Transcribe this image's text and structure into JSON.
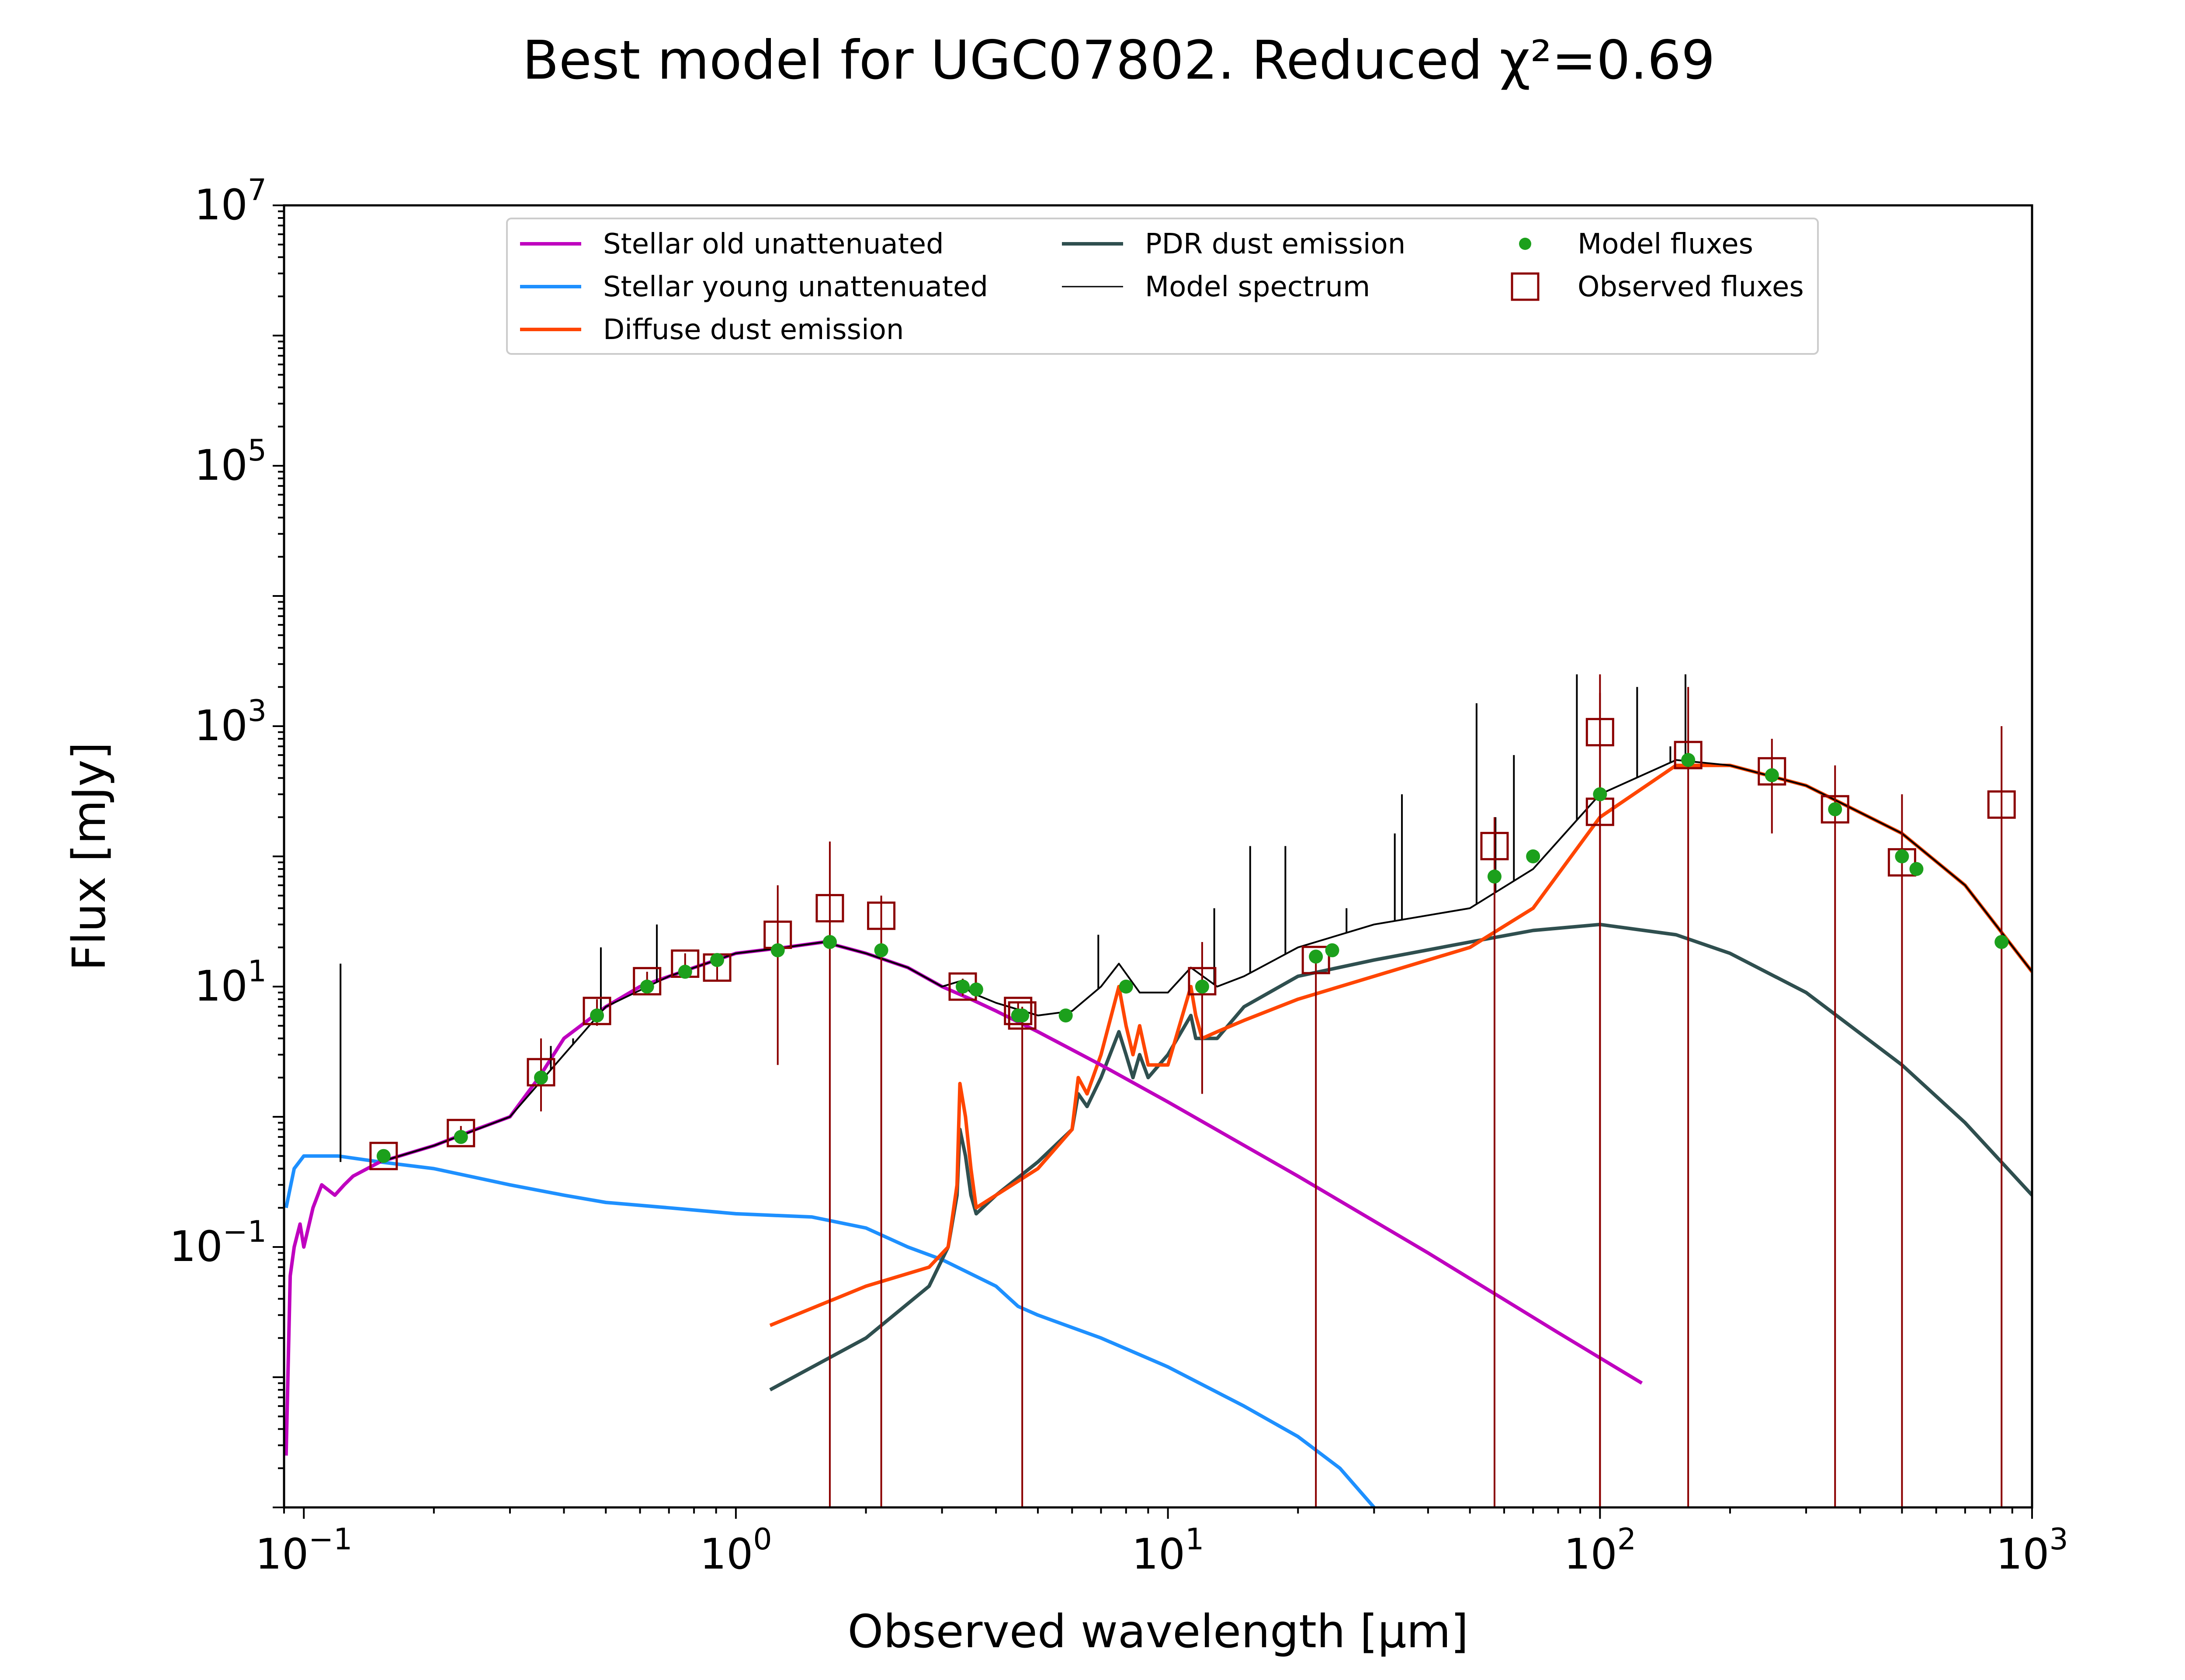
{
  "chart_data": {
    "type": "line",
    "title": "Best model for UGC07802. Reduced χ²=0.69",
    "xlabel": "Observed wavelength [μm]",
    "ylabel": "Flux [mJy]",
    "x_scale": "log",
    "y_scale": "log",
    "xlim": [
      0.09,
      1000
    ],
    "ylim": [
      0.001,
      10000000
    ],
    "x_ticks": [
      {
        "value": 0.1,
        "base": "10",
        "exp": "−1"
      },
      {
        "value": 1,
        "base": "10",
        "exp": "0"
      },
      {
        "value": 10,
        "base": "10",
        "exp": "1"
      },
      {
        "value": 100,
        "base": "10",
        "exp": "2"
      },
      {
        "value": 1000,
        "base": "10",
        "exp": "3"
      }
    ],
    "y_ticks": [
      {
        "value": 0.1,
        "base": "10",
        "exp": "−1"
      },
      {
        "value": 10,
        "base": "10",
        "exp": "1"
      },
      {
        "value": 1000,
        "base": "10",
        "exp": "3"
      },
      {
        "value": 100000,
        "base": "10",
        "exp": "5"
      },
      {
        "value": 10000000,
        "base": "10",
        "exp": "7"
      }
    ],
    "grid": false,
    "legend_position": "top-center",
    "series": [
      {
        "name": "Stellar old unattenuated",
        "color": "#bf00bf",
        "x": [
          0.091,
          0.093,
          0.095,
          0.098,
          0.1,
          0.105,
          0.11,
          0.118,
          0.124,
          0.13,
          0.15,
          0.2,
          0.25,
          0.3,
          0.35,
          0.4,
          0.5,
          0.6,
          0.8,
          1.0,
          1.3,
          1.6,
          2.0,
          2.5,
          3.0,
          3.5,
          4.0,
          5.0,
          7.0,
          10,
          20,
          40,
          80,
          125
        ],
        "y": [
          0.0025,
          0.06,
          0.1,
          0.15,
          0.1,
          0.2,
          0.3,
          0.25,
          0.3,
          0.35,
          0.45,
          0.6,
          0.8,
          1.0,
          2.0,
          4.0,
          7.0,
          10,
          14,
          18,
          20,
          22,
          18,
          14,
          10,
          8,
          6.5,
          4.5,
          2.5,
          1.3,
          0.35,
          0.09,
          0.022,
          0.009
        ]
      },
      {
        "name": "Stellar young unattenuated",
        "color": "#1e90ff",
        "x": [
          0.091,
          0.095,
          0.1,
          0.12,
          0.15,
          0.2,
          0.3,
          0.4,
          0.5,
          0.7,
          1.0,
          1.5,
          2.0,
          2.5,
          3.0,
          4.0,
          4.5,
          5.0,
          7.0,
          10,
          15,
          20,
          25,
          30
        ],
        "y": [
          0.2,
          0.4,
          0.5,
          0.5,
          0.45,
          0.4,
          0.3,
          0.25,
          0.22,
          0.2,
          0.18,
          0.17,
          0.14,
          0.1,
          0.08,
          0.05,
          0.035,
          0.03,
          0.02,
          0.012,
          0.006,
          0.0035,
          0.002,
          0.001
        ]
      },
      {
        "name": "Diffuse dust emission",
        "color": "#ff4500",
        "x": [
          1.2,
          2.0,
          2.8,
          3.1,
          3.25,
          3.3,
          3.4,
          3.5,
          3.6,
          4.0,
          5.0,
          6.0,
          6.2,
          6.5,
          7.0,
          7.7,
          8.0,
          8.3,
          8.6,
          9.0,
          10,
          11.3,
          11.6,
          12,
          13,
          15,
          20,
          30,
          50,
          70,
          100,
          150,
          200,
          300,
          500,
          700,
          1000
        ],
        "y": [
          0.025,
          0.05,
          0.07,
          0.1,
          0.3,
          1.8,
          1.0,
          0.4,
          0.2,
          0.25,
          0.4,
          0.8,
          2.0,
          1.5,
          3.0,
          10,
          5.0,
          3.0,
          5.0,
          2.5,
          2.5,
          10,
          6.0,
          4.0,
          4.5,
          5.5,
          8.0,
          12,
          20,
          40,
          200,
          500,
          500,
          350,
          150,
          60,
          13
        ]
      },
      {
        "name": "PDR dust emission",
        "color": "#2f4f4f",
        "x": [
          1.2,
          2.0,
          2.8,
          3.1,
          3.25,
          3.3,
          3.4,
          3.5,
          3.6,
          4.0,
          5.0,
          6.0,
          6.2,
          6.5,
          7.0,
          7.7,
          8.0,
          8.3,
          8.6,
          9.0,
          10,
          11.3,
          11.6,
          12,
          13,
          15,
          20,
          30,
          50,
          70,
          100,
          150,
          200,
          300,
          500,
          700,
          1000
        ],
        "y": [
          0.008,
          0.02,
          0.05,
          0.1,
          0.25,
          0.8,
          0.5,
          0.25,
          0.18,
          0.25,
          0.45,
          0.8,
          1.5,
          1.2,
          2.0,
          4.5,
          3.0,
          2.0,
          3.0,
          2.0,
          3.0,
          6.0,
          4.0,
          4.0,
          4.0,
          7.0,
          12,
          16,
          22,
          27,
          30,
          25,
          18,
          9,
          2.5,
          0.9,
          0.25
        ]
      },
      {
        "name": "Model spectrum",
        "color": "#000000",
        "x": [
          0.15,
          0.2,
          0.3,
          0.4,
          0.5,
          0.7,
          1.0,
          1.3,
          1.6,
          2.0,
          2.5,
          3.0,
          3.3,
          3.5,
          4.0,
          5.0,
          6.0,
          7.0,
          7.7,
          8.6,
          10,
          11.3,
          13,
          15,
          20,
          30,
          50,
          70,
          100,
          150,
          200,
          300,
          500,
          700,
          1000
        ],
        "y": [
          0.45,
          0.6,
          1.0,
          3.0,
          7.0,
          12,
          18,
          20,
          22,
          18,
          14,
          10,
          11,
          9,
          7.5,
          6.0,
          6.5,
          10,
          15,
          9.0,
          9.0,
          14,
          10,
          12,
          20,
          30,
          40,
          80,
          300,
          550,
          500,
          350,
          150,
          60,
          13
        ]
      }
    ],
    "emission_lines": [
      {
        "x": 0.1216,
        "y_peak": 15
      },
      {
        "x": 0.373,
        "y_peak": 3.5
      },
      {
        "x": 0.42,
        "y_peak": 4.0
      },
      {
        "x": 0.487,
        "y_peak": 20
      },
      {
        "x": 0.6563,
        "y_peak": 30
      },
      {
        "x": 6.9,
        "y_peak": 25
      },
      {
        "x": 12.8,
        "y_peak": 40
      },
      {
        "x": 15.5,
        "y_peak": 120
      },
      {
        "x": 18.7,
        "y_peak": 120
      },
      {
        "x": 25.9,
        "y_peak": 40
      },
      {
        "x": 33.5,
        "y_peak": 150
      },
      {
        "x": 34.8,
        "y_peak": 300
      },
      {
        "x": 51.8,
        "y_peak": 1500
      },
      {
        "x": 57.3,
        "y_peak": 200
      },
      {
        "x": 63.2,
        "y_peak": 600
      },
      {
        "x": 88.4,
        "y_peak": 2500
      },
      {
        "x": 121.9,
        "y_peak": 2000
      },
      {
        "x": 145.5,
        "y_peak": 700
      },
      {
        "x": 157.7,
        "y_peak": 2500
      }
    ],
    "model_fluxes": {
      "name": "Model fluxes",
      "color": "#1ca01c",
      "x": [
        0.153,
        0.231,
        0.354,
        0.477,
        0.623,
        0.763,
        0.905,
        1.25,
        1.65,
        2.17,
        3.35,
        3.6,
        4.5,
        4.6,
        5.8,
        8.0,
        12,
        22,
        24,
        57,
        70,
        100,
        160,
        250,
        350,
        500,
        850,
        540
      ],
      "y": [
        0.5,
        0.7,
        2.0,
        6.0,
        10,
        13,
        16,
        19,
        22,
        19,
        10,
        9.5,
        6.0,
        6.0,
        6.0,
        10,
        10,
        17,
        19,
        70,
        100,
        300,
        550,
        420,
        230,
        100,
        22,
        80
      ]
    },
    "observed_fluxes": {
      "name": "Observed fluxes",
      "color": "#8b0000",
      "points": [
        {
          "x": 0.153,
          "y": 0.5,
          "err_lo": 0.45,
          "err_hi": 0.55
        },
        {
          "x": 0.231,
          "y": 0.75,
          "err_lo": 0.65,
          "err_hi": 0.85
        },
        {
          "x": 0.354,
          "y": 2.2,
          "err_lo": 1.1,
          "err_hi": 4.0
        },
        {
          "x": 0.477,
          "y": 6.5,
          "err_lo": 5.0,
          "err_hi": 8.0
        },
        {
          "x": 0.623,
          "y": 11,
          "err_lo": 9.0,
          "err_hi": 13
        },
        {
          "x": 0.763,
          "y": 15,
          "err_lo": 12,
          "err_hi": 18
        },
        {
          "x": 0.905,
          "y": 14,
          "err_lo": 11,
          "err_hi": 17
        },
        {
          "x": 1.25,
          "y": 25,
          "err_lo": 2.5,
          "err_hi": 60
        },
        {
          "x": 1.65,
          "y": 40,
          "err_lo": 0.001,
          "err_hi": 130
        },
        {
          "x": 2.17,
          "y": 35,
          "err_lo": 0.001,
          "err_hi": 50
        },
        {
          "x": 3.35,
          "y": 10,
          "err_lo": 8.5,
          "err_hi": 11.5
        },
        {
          "x": 4.5,
          "y": 6.5,
          "err_lo": 5.5,
          "err_hi": 7.5
        },
        {
          "x": 4.6,
          "y": 6.0,
          "err_lo": 0.001,
          "err_hi": 7.0
        },
        {
          "x": 12,
          "y": 11,
          "err_lo": 1.5,
          "err_hi": 22
        },
        {
          "x": 22,
          "y": 16,
          "err_lo": 0.001,
          "err_hi": 18
        },
        {
          "x": 57,
          "y": 120,
          "err_lo": 0.001,
          "err_hi": 200
        },
        {
          "x": 100,
          "y": 900,
          "err_lo": 0.001,
          "err_hi": 2500
        },
        {
          "x": 100,
          "y": 220,
          "err_lo": 0.001,
          "err_hi": 1800
        },
        {
          "x": 160,
          "y": 600,
          "err_lo": 0.001,
          "err_hi": 2000
        },
        {
          "x": 250,
          "y": 450,
          "err_lo": 150,
          "err_hi": 800
        },
        {
          "x": 350,
          "y": 230,
          "err_lo": 0.001,
          "err_hi": 500
        },
        {
          "x": 500,
          "y": 90,
          "err_lo": 0.001,
          "err_hi": 300
        },
        {
          "x": 850,
          "y": 250,
          "err_lo": 0.001,
          "err_hi": 1000
        }
      ]
    }
  }
}
